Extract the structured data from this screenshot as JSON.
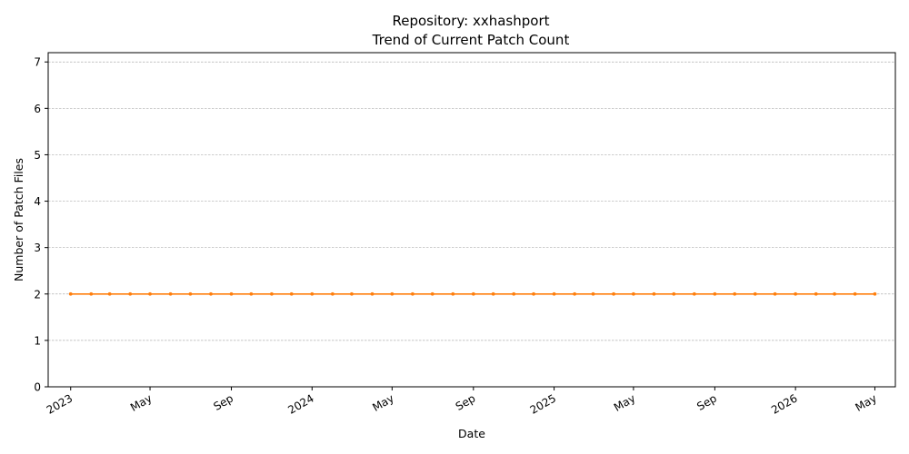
{
  "chart_data": {
    "type": "line",
    "title_line1": "Repository: xxhashport",
    "title_line2": "Trend of Current Patch Count",
    "xlabel": "Date",
    "ylabel": "Number of Patch Files",
    "ylim": [
      0,
      7.2
    ],
    "yticks": [
      0,
      1,
      2,
      3,
      4,
      5,
      6,
      7
    ],
    "xlim": [
      "2022-11-28",
      "2026-06-01"
    ],
    "xticks": [
      {
        "date": "2023-01-01",
        "label": "2023"
      },
      {
        "date": "2023-05-01",
        "label": "May"
      },
      {
        "date": "2023-09-01",
        "label": "Sep"
      },
      {
        "date": "2024-01-01",
        "label": "2024"
      },
      {
        "date": "2024-05-01",
        "label": "May"
      },
      {
        "date": "2024-09-01",
        "label": "Sep"
      },
      {
        "date": "2025-01-01",
        "label": "2025"
      },
      {
        "date": "2025-05-01",
        "label": "May"
      },
      {
        "date": "2025-09-01",
        "label": "Sep"
      },
      {
        "date": "2026-01-01",
        "label": "2026"
      },
      {
        "date": "2026-05-01",
        "label": "May"
      }
    ],
    "grid": "y-dashed",
    "series": [
      {
        "color": "#ff7f0e",
        "x": [
          "2023-01-01",
          "2023-02-01",
          "2023-03-01",
          "2023-04-01",
          "2023-05-01",
          "2023-06-01",
          "2023-07-01",
          "2023-08-01",
          "2023-09-01",
          "2023-10-01",
          "2023-11-01",
          "2023-12-01",
          "2024-01-01",
          "2024-02-01",
          "2024-03-01",
          "2024-04-01",
          "2024-05-01",
          "2024-06-01",
          "2024-07-01",
          "2024-08-01",
          "2024-09-01",
          "2024-10-01",
          "2024-11-01",
          "2024-12-01",
          "2025-01-01",
          "2025-02-01",
          "2025-03-01",
          "2025-04-01",
          "2025-05-01",
          "2025-06-01",
          "2025-07-01",
          "2025-08-01",
          "2025-09-01",
          "2025-10-01",
          "2025-11-01",
          "2025-12-01",
          "2026-01-01",
          "2026-02-01",
          "2026-03-01",
          "2026-04-01",
          "2026-05-01"
        ],
        "values": [
          2,
          2,
          2,
          2,
          2,
          2,
          2,
          2,
          2,
          2,
          2,
          2,
          2,
          2,
          2,
          2,
          2,
          2,
          2,
          2,
          2,
          2,
          2,
          2,
          2,
          2,
          2,
          2,
          2,
          2,
          2,
          2,
          2,
          2,
          2,
          2,
          2,
          2,
          2,
          2,
          2
        ]
      }
    ]
  }
}
